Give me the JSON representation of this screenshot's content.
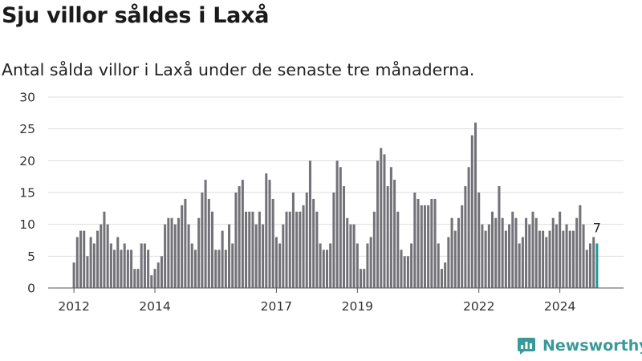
{
  "title": "Sju villor såldes i Laxå",
  "subtitle": "Antal sålda villor i Laxå under de senaste tre månaderna.",
  "brand": {
    "name": "Newsworthy",
    "icon": "newsworthy-logo-icon"
  },
  "colors": {
    "bar": "#737278",
    "highlight": "#1a9c9c",
    "grid": "#dddddd",
    "axis": "#555555",
    "brand": "#3a9a9a"
  },
  "last_value_label": "7",
  "chart_data": {
    "type": "bar",
    "title": "Sju villor såldes i Laxå",
    "subtitle": "Antal sålda villor i Laxå under de senaste tre månaderna.",
    "xlabel": "",
    "ylabel": "",
    "ylim": [
      0,
      30
    ],
    "yticks": [
      "0",
      "5",
      "10",
      "15",
      "20",
      "25",
      "30"
    ],
    "xticks": [
      "2012",
      "2014",
      "2017",
      "2019",
      "2022",
      "2024"
    ],
    "grid": true,
    "highlight_last": true,
    "values": [
      4,
      8,
      9,
      9,
      5,
      8,
      7,
      9,
      10,
      12,
      10,
      7,
      6,
      8,
      6,
      7,
      6,
      6,
      3,
      3,
      7,
      7,
      6,
      2,
      3,
      4,
      5,
      10,
      11,
      11,
      10,
      11,
      13,
      14,
      10,
      7,
      6,
      11,
      15,
      17,
      14,
      12,
      6,
      6,
      9,
      6,
      10,
      7,
      15,
      16,
      17,
      12,
      12,
      12,
      10,
      12,
      10,
      18,
      17,
      14,
      8,
      7,
      10,
      12,
      12,
      15,
      12,
      12,
      13,
      15,
      20,
      14,
      12,
      7,
      6,
      6,
      7,
      15,
      20,
      19,
      16,
      11,
      10,
      10,
      7,
      3,
      3,
      7,
      8,
      12,
      20,
      22,
      21,
      16,
      19,
      17,
      12,
      6,
      5,
      5,
      7,
      15,
      14,
      13,
      13,
      13,
      14,
      14,
      7,
      3,
      4,
      8,
      11,
      9,
      11,
      13,
      16,
      19,
      24,
      26,
      15,
      10,
      9,
      10,
      12,
      11,
      16,
      11,
      9,
      10,
      12,
      11,
      7,
      8,
      11,
      10,
      12,
      11,
      9,
      9,
      8,
      9,
      11,
      10,
      12,
      9,
      10,
      9,
      9,
      11,
      13,
      10,
      6,
      7,
      8,
      7
    ]
  }
}
